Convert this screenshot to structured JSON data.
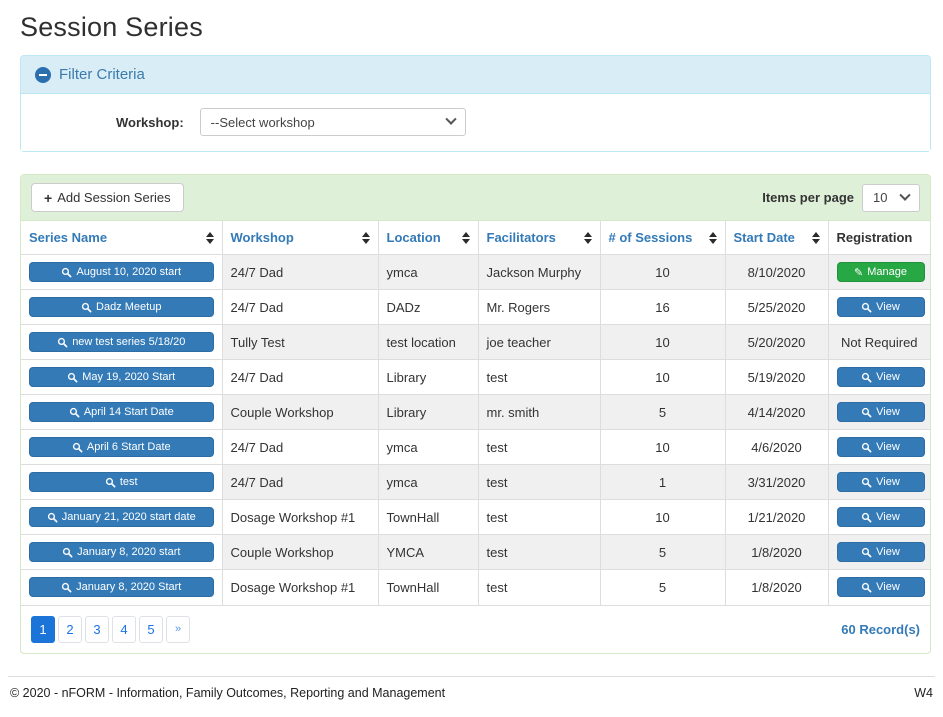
{
  "page": {
    "title": "Session Series"
  },
  "filter": {
    "title": "Filter Criteria",
    "workshop_label": "Workshop:",
    "workshop_selected": "--Select workshop"
  },
  "toolbar": {
    "add_button_label": "Add Session Series",
    "items_per_page_label": "Items per page",
    "items_per_page_value": "10"
  },
  "table": {
    "columns": [
      {
        "label": "Series Name",
        "sortable": true
      },
      {
        "label": "Workshop",
        "sortable": true
      },
      {
        "label": "Location",
        "sortable": true
      },
      {
        "label": "Facilitators",
        "sortable": true
      },
      {
        "label": "# of Sessions",
        "sortable": true
      },
      {
        "label": "Start Date",
        "sortable": true
      },
      {
        "label": "Registration",
        "sortable": false
      }
    ],
    "rows": [
      {
        "series_name": "August 10, 2020 start",
        "workshop": "24/7 Dad",
        "location": "ymca",
        "facilitators": "Jackson Murphy",
        "sessions": "10",
        "start_date": "8/10/2020",
        "registration": {
          "type": "manage",
          "label": "Manage"
        }
      },
      {
        "series_name": "Dadz Meetup",
        "workshop": "24/7 Dad",
        "location": "DADz",
        "facilitators": "Mr. Rogers",
        "sessions": "16",
        "start_date": "5/25/2020",
        "registration": {
          "type": "view",
          "label": "View"
        }
      },
      {
        "series_name": "new test series 5/18/20",
        "workshop": "Tully Test",
        "location": "test location",
        "facilitators": "joe teacher",
        "sessions": "10",
        "start_date": "5/20/2020",
        "registration": {
          "type": "text",
          "label": "Not Required"
        }
      },
      {
        "series_name": "May 19, 2020 Start",
        "workshop": "24/7 Dad",
        "location": "Library",
        "facilitators": "test",
        "sessions": "10",
        "start_date": "5/19/2020",
        "registration": {
          "type": "view",
          "label": "View"
        }
      },
      {
        "series_name": "April 14 Start Date",
        "workshop": "Couple Workshop",
        "location": "Library",
        "facilitators": "mr. smith",
        "sessions": "5",
        "start_date": "4/14/2020",
        "registration": {
          "type": "view",
          "label": "View"
        }
      },
      {
        "series_name": "April 6 Start Date",
        "workshop": "24/7 Dad",
        "location": "ymca",
        "facilitators": "test",
        "sessions": "10",
        "start_date": "4/6/2020",
        "registration": {
          "type": "view",
          "label": "View"
        }
      },
      {
        "series_name": "test",
        "workshop": "24/7 Dad",
        "location": "ymca",
        "facilitators": "test",
        "sessions": "1",
        "start_date": "3/31/2020",
        "registration": {
          "type": "view",
          "label": "View"
        }
      },
      {
        "series_name": "January 21, 2020 start date",
        "workshop": "Dosage Workshop #1",
        "location": "TownHall",
        "facilitators": "test",
        "sessions": "10",
        "start_date": "1/21/2020",
        "registration": {
          "type": "view",
          "label": "View"
        }
      },
      {
        "series_name": "January 8, 2020 start",
        "workshop": "Couple Workshop",
        "location": "YMCA",
        "facilitators": "test",
        "sessions": "5",
        "start_date": "1/8/2020",
        "registration": {
          "type": "view",
          "label": "View"
        }
      },
      {
        "series_name": "January 8, 2020 Start",
        "workshop": "Dosage Workshop #1",
        "location": "TownHall",
        "facilitators": "test",
        "sessions": "5",
        "start_date": "1/8/2020",
        "registration": {
          "type": "view",
          "label": "View"
        }
      }
    ]
  },
  "pagination": {
    "pages": [
      "1",
      "2",
      "3",
      "4",
      "5",
      "»"
    ],
    "active_page": "1",
    "record_count": "60 Record(s)"
  },
  "footer": {
    "copyright": "© 2020 - nFORM - Information, Family Outcomes, Reporting and Management",
    "version": "W4"
  },
  "colors": {
    "primary_button": "#337ab7",
    "manage_button_green": "#28a745",
    "filter_heading_bg": "#d9edf7",
    "filter_border": "#bce8f1",
    "toolbar_bg": "#dff0d8",
    "toolbar_border": "#d6e9c6",
    "active_page_blue": "#1b75d8",
    "row_stripe": "#f0f0f1"
  }
}
